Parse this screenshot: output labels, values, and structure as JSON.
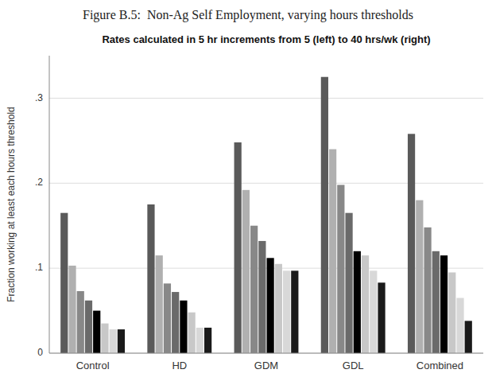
{
  "chart_data": {
    "type": "bar",
    "title": "Figure B.5:  Non-Ag Self Employment, varying hours thresholds",
    "subtitle": "Rates calculated in 5 hr increments from 5 (left) to 40 hrs/wk (right)",
    "ylabel": "Fraction working at least each hours threshold",
    "categories": [
      "Control",
      "HD",
      "GDM",
      "GDL",
      "Combined"
    ],
    "series": [
      {
        "color": "#5a5a5a",
        "values": [
          0.165,
          0.175,
          0.248,
          0.325,
          0.258
        ]
      },
      {
        "color": "#b0b0b0",
        "values": [
          0.103,
          0.115,
          0.192,
          0.24,
          0.18
        ]
      },
      {
        "color": "#888888",
        "values": [
          0.073,
          0.082,
          0.15,
          0.198,
          0.148
        ]
      },
      {
        "color": "#6a6a6a",
        "values": [
          0.062,
          0.072,
          0.132,
          0.165,
          0.12
        ]
      },
      {
        "color": "#000000",
        "values": [
          0.05,
          0.062,
          0.112,
          0.12,
          0.115
        ]
      },
      {
        "color": "#c8c8c8",
        "values": [
          0.035,
          0.048,
          0.105,
          0.115,
          0.095
        ]
      },
      {
        "color": "#d8d8d8",
        "values": [
          0.028,
          0.03,
          0.097,
          0.097,
          0.065
        ]
      },
      {
        "color": "#1a1a1a",
        "values": [
          0.028,
          0.03,
          0.097,
          0.083,
          0.038
        ]
      }
    ],
    "ylim": [
      0,
      0.35
    ],
    "yticks": [
      0,
      {
        "value": 0.1,
        "label": ".1"
      },
      {
        "value": 0.2,
        "label": ".2"
      },
      {
        "value": 0.3,
        "label": ".3"
      }
    ],
    "grid": true
  }
}
